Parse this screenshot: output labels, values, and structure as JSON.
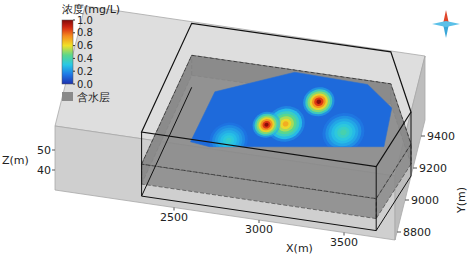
{
  "chart_data": {
    "type": "3d_plume",
    "colorbar_title": "浓度(mg/L)",
    "colorbar_range": [
      0,
      1
    ],
    "colorbar_ticks": [
      {
        "value": 0,
        "label": "0.0"
      },
      0.2,
      0.4,
      0.6,
      0.8,
      {
        "value": 1,
        "label": "1.0"
      }
    ],
    "aquifer": {
      "label": "含水层",
      "color": "#8a8a8a",
      "z": [
        36,
        46
      ]
    },
    "x_label": "X(m)",
    "y_label": "Y(m)",
    "z_label": "Z(m)",
    "xlim": [
      1800,
      3800
    ],
    "ylim": [
      8750,
      9500
    ],
    "zlim": [
      30,
      62
    ],
    "xticks": [
      2500,
      3000,
      3500
    ],
    "yticks": [
      8800,
      9000,
      9200,
      9400
    ],
    "zticks": [
      40,
      50
    ],
    "site_boundary": {
      "x": [
        2300,
        2430,
        3600,
        3800,
        3680
      ],
      "y": [
        8790,
        9490,
        9495,
        9150,
        8790
      ]
    },
    "plume": {
      "x": [
        2546,
        2613,
        3039,
        3470,
        3640,
        3650,
        3143,
        2660
      ],
      "y": [
        8968,
        9291,
        9480,
        9470,
        9350,
        9110,
        9030,
        8955
      ],
      "z": 46,
      "base_value": 0.12
    },
    "hotspots": [
      {
        "x": 3217,
        "y": 9323,
        "value": 1.0,
        "radius": 90
      },
      {
        "x": 2953,
        "y": 9138,
        "value": 1.0,
        "radius": 80
      },
      {
        "x": 3060,
        "y": 9160,
        "value": 0.7,
        "radius": 110
      },
      {
        "x": 3400,
        "y": 9160,
        "value": 0.4,
        "radius": 120
      },
      {
        "x": 2760,
        "y": 9010,
        "value": 0.35,
        "radius": 110
      }
    ]
  }
}
